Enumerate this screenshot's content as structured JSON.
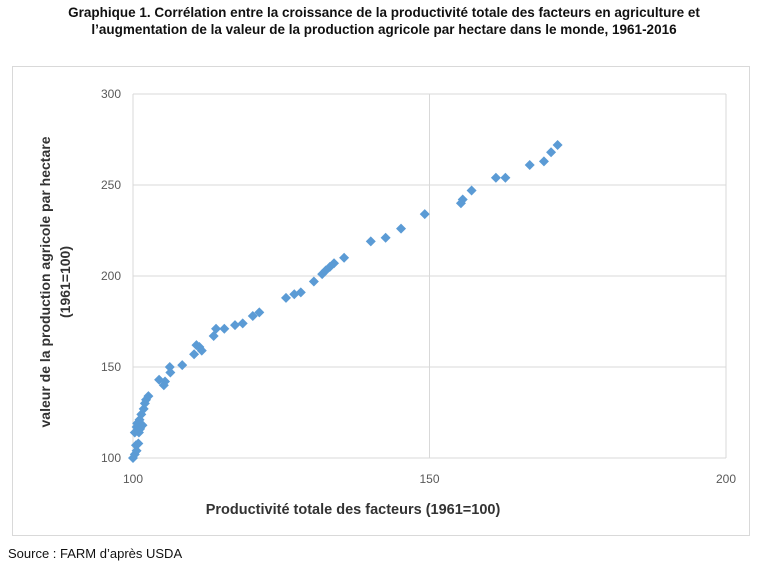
{
  "title_line1": "Graphique 1. Corrélation entre la croissance de la productivité totale des facteurs en agriculture et",
  "title_line2": "l’augmentation de la valeur de la production agricole par hectare dans le monde, 1961-2016",
  "source": "Source : FARM d’après USDA",
  "chart_data": {
    "type": "scatter",
    "title": "Graphique 1. Corrélation entre la croissance de la productivité totale des facteurs en agriculture et l’augmentation de la valeur de la production agricole par hectare dans le monde, 1961-2016",
    "xlabel": "Productivité totale des facteurs (1961=100)",
    "ylabel_line1": "valeur de la production agricole par hectare",
    "ylabel_line2": "(1961=100)",
    "xlim": [
      100,
      200
    ],
    "ylim": [
      100,
      300
    ],
    "xticks": [
      100,
      150,
      200
    ],
    "yticks": [
      100,
      150,
      200,
      250,
      300
    ],
    "grid": true,
    "marker": "diamond",
    "color": "#5b9bd5",
    "x": [
      100.0,
      100.3,
      100.6,
      100.5,
      100.9,
      100.3,
      100.6,
      101.0,
      100.7,
      101.2,
      101.1,
      101.6,
      101.4,
      101.8,
      102.0,
      102.2,
      102.6,
      104.4,
      105.4,
      105.2,
      106.2,
      106.3,
      108.3,
      110.3,
      110.7,
      111.2,
      111.6,
      113.6,
      114.0,
      115.4,
      117.2,
      118.5,
      120.2,
      121.3,
      125.8,
      127.2,
      128.3,
      130.5,
      131.9,
      132.5,
      133.2,
      133.9,
      135.6,
      140.1,
      142.6,
      145.2,
      149.2,
      155.3,
      155.6,
      157.1,
      161.2,
      162.8,
      166.9,
      169.3,
      170.5,
      171.6
    ],
    "y": [
      100,
      102,
      104,
      107,
      108,
      114,
      117,
      114,
      119,
      116,
      121,
      118,
      124,
      127,
      130,
      132,
      134,
      143,
      142,
      140,
      150,
      147,
      151,
      157,
      162,
      161,
      159,
      167,
      171,
      171,
      173,
      174,
      178,
      180,
      188,
      190,
      191,
      197,
      201,
      203,
      205,
      207,
      210,
      219,
      221,
      226,
      234,
      240,
      242,
      247,
      254,
      254,
      261,
      263,
      268,
      272
    ]
  }
}
